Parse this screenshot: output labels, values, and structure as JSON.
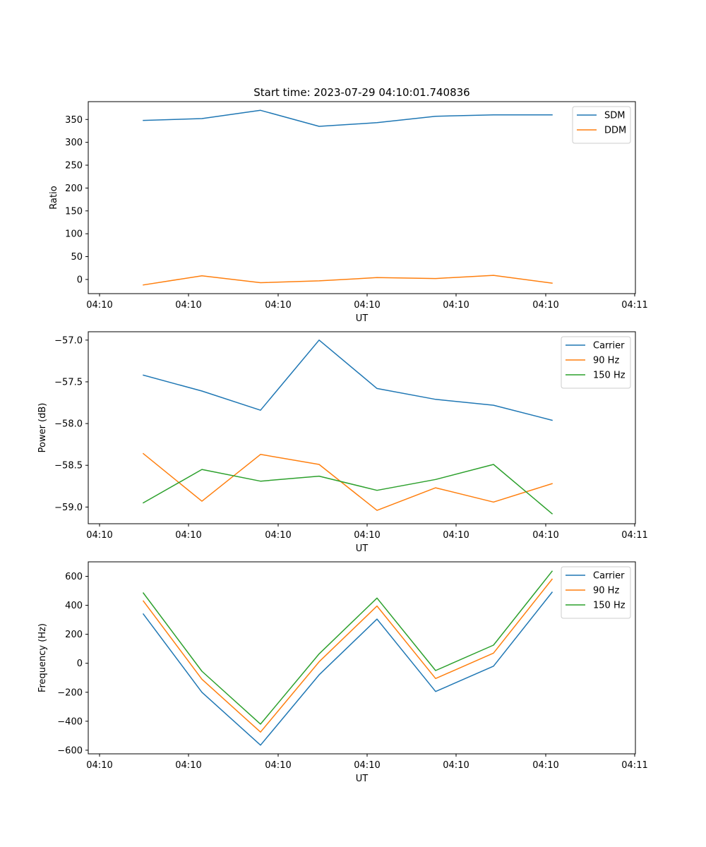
{
  "figure": {
    "suptitle": "Start time: 2023-07-29 04:10:01.740836"
  },
  "chart_data": [
    {
      "type": "line",
      "title": "Start time: 2023-07-29 04:10:01.740836",
      "xlabel": "UT",
      "ylabel": "Ratio",
      "xticks": [
        "04:10",
        "04:10",
        "04:10",
        "04:10",
        "04:10",
        "04:10",
        "04:10",
        "04:11"
      ],
      "ylim": [
        -31,
        389
      ],
      "yticks": [
        0,
        50,
        100,
        150,
        200,
        250,
        300,
        350
      ],
      "ytick_labels": [
        "0",
        "50",
        "100",
        "150",
        "200",
        "250",
        "300",
        "350"
      ],
      "grid": false,
      "legend_position": "top-right",
      "series": [
        {
          "name": "SDM",
          "color": "#1f77b4",
          "values": [
            348,
            352,
            370,
            335,
            343,
            357,
            360,
            360
          ]
        },
        {
          "name": "DDM",
          "color": "#ff7f0e",
          "values": [
            -12,
            8,
            -7,
            -3,
            4,
            2,
            9,
            -8
          ]
        }
      ]
    },
    {
      "type": "line",
      "xlabel": "UT",
      "ylabel": "Power (dB)",
      "xticks": [
        "04:10",
        "04:10",
        "04:10",
        "04:10",
        "04:10",
        "04:10",
        "04:10",
        "04:11"
      ],
      "ylim": [
        -59.2,
        -56.9
      ],
      "yticks": [
        -59.0,
        -58.5,
        -58.0,
        -57.5,
        -57.0
      ],
      "ytick_labels": [
        "−59.0",
        "−58.5",
        "−58.0",
        "−57.5",
        "−57.0"
      ],
      "grid": false,
      "legend_position": "top-right",
      "series": [
        {
          "name": "Carrier",
          "color": "#1f77b4",
          "values": [
            -57.42,
            -57.61,
            -57.84,
            -57.0,
            -57.58,
            -57.71,
            -57.78,
            -57.96
          ]
        },
        {
          "name": "90 Hz",
          "color": "#ff7f0e",
          "values": [
            -58.36,
            -58.93,
            -58.37,
            -58.49,
            -59.04,
            -58.77,
            -58.94,
            -58.72
          ]
        },
        {
          "name": "150 Hz",
          "color": "#2ca02c",
          "values": [
            -58.95,
            -58.55,
            -58.69,
            -58.63,
            -58.8,
            -58.67,
            -58.49,
            -59.08
          ]
        }
      ]
    },
    {
      "type": "line",
      "xlabel": "UT",
      "ylabel": "Frequency (Hz)",
      "xticks": [
        "04:10",
        "04:10",
        "04:10",
        "04:10",
        "04:10",
        "04:10",
        "04:10",
        "04:11"
      ],
      "ylim": [
        -625,
        700
      ],
      "yticks": [
        -600,
        -400,
        -200,
        0,
        200,
        400,
        600
      ],
      "ytick_labels": [
        "−600",
        "−400",
        "−200",
        "0",
        "200",
        "400",
        "600"
      ],
      "grid": false,
      "legend_position": "top-right",
      "series": [
        {
          "name": "Carrier",
          "color": "#1f77b4",
          "values": [
            340,
            -200,
            -565,
            -80,
            305,
            -195,
            -20,
            490
          ]
        },
        {
          "name": "90 Hz",
          "color": "#ff7f0e",
          "values": [
            430,
            -110,
            -475,
            10,
            395,
            -105,
            70,
            580
          ]
        },
        {
          "name": "150 Hz",
          "color": "#2ca02c",
          "values": [
            485,
            -55,
            -420,
            65,
            450,
            -50,
            125,
            635
          ]
        }
      ]
    }
  ]
}
